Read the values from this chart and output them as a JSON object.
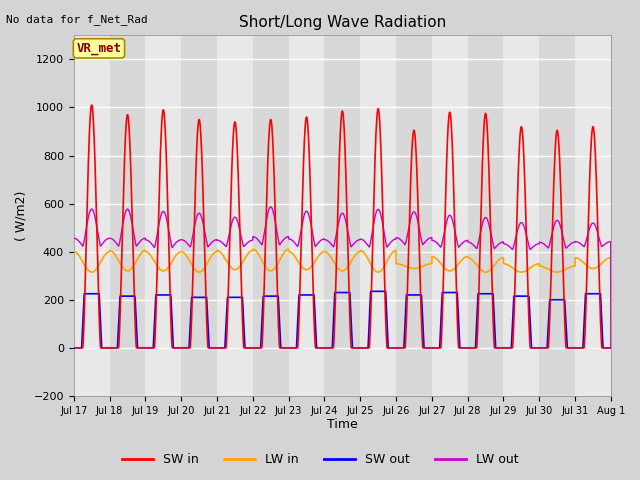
{
  "title": "Short/Long Wave Radiation",
  "xlabel": "Time",
  "ylabel": "( W/m2)",
  "ylim": [
    -200,
    1300
  ],
  "yticks": [
    -200,
    0,
    200,
    400,
    600,
    800,
    1000,
    1200
  ],
  "top_left_text": "No data for f_Net_Rad",
  "legend_box_text": "VR_met",
  "legend_colors": [
    "#ff0000",
    "#ffa500",
    "#0000ff",
    "#cc00cc"
  ],
  "legend_labels": [
    "SW in",
    "LW in",
    "SW out",
    "LW out"
  ],
  "x_tick_labels": [
    "Jul 17",
    "Jul 18",
    "Jul 19",
    "Jul 20",
    "Jul 21",
    "Jul 22",
    "Jul 23",
    "Jul 24",
    "Jul 25",
    "Jul 26",
    "Jul 27",
    "Jul 28",
    "Jul 29",
    "Jul 30",
    "Jul 31",
    "Aug 1"
  ],
  "sw_in_peaks": [
    1010,
    970,
    990,
    950,
    940,
    950,
    960,
    985,
    995,
    905,
    980,
    975,
    920,
    905,
    920,
    920
  ],
  "lw_in_day_peaks": [
    400,
    405,
    400,
    400,
    405,
    410,
    400,
    400,
    405,
    350,
    380,
    375,
    350,
    340,
    375,
    410
  ],
  "lw_in_night": [
    315,
    320,
    320,
    315,
    325,
    320,
    325,
    320,
    315,
    330,
    320,
    315,
    315,
    315,
    330,
    330
  ],
  "sw_out_peaks": [
    225,
    215,
    220,
    210,
    210,
    215,
    220,
    230,
    235,
    220,
    230,
    225,
    215,
    200,
    225,
    220
  ],
  "lw_out_day_peaks": [
    610,
    610,
    600,
    590,
    570,
    620,
    600,
    590,
    610,
    595,
    580,
    570,
    545,
    555,
    540,
    535
  ],
  "lw_out_night": [
    390,
    390,
    385,
    390,
    395,
    395,
    390,
    390,
    385,
    400,
    390,
    385,
    385,
    390,
    400,
    400
  ],
  "bg_color": "#f5f5f5",
  "fig_bg_color": "#d4d4d4",
  "grid_color": "#cccccc"
}
